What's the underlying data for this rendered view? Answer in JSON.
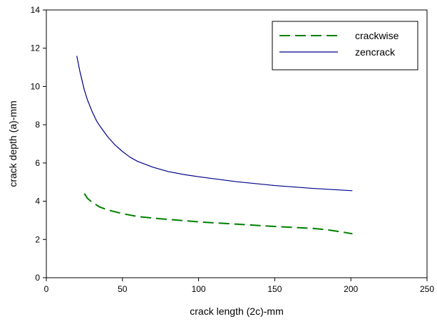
{
  "chart_data": {
    "type": "line",
    "title": "",
    "xlabel": "crack length (2c)-mm",
    "ylabel": "crack depth (a)-mm",
    "xlim": [
      0,
      250
    ],
    "ylim": [
      0,
      14
    ],
    "x_ticks": [
      0,
      50,
      100,
      150,
      200,
      250
    ],
    "y_ticks": [
      0,
      2,
      4,
      6,
      8,
      10,
      12,
      14
    ],
    "x_tick_labels": [
      "0",
      "50",
      "100",
      "150",
      "200",
      "250"
    ],
    "y_tick_labels": [
      "0",
      "2",
      "4",
      "6",
      "8",
      "10",
      "12",
      "14"
    ],
    "grid": false,
    "legend_position": "top-right",
    "series": [
      {
        "name": "crackwise",
        "color": "#008000",
        "style": "dashed",
        "x": [
          25,
          27,
          30,
          35,
          40,
          50,
          60,
          75,
          100,
          125,
          150,
          175,
          185,
          195,
          201
        ],
        "y": [
          4.4,
          4.15,
          3.95,
          3.7,
          3.55,
          3.35,
          3.2,
          3.08,
          2.92,
          2.8,
          2.68,
          2.58,
          2.5,
          2.38,
          2.3
        ]
      },
      {
        "name": "zencrack",
        "color": "#00008B",
        "style": "solid",
        "x": [
          20,
          22,
          25,
          27,
          30,
          33,
          35,
          40,
          45,
          50,
          55,
          60,
          70,
          80,
          90,
          100,
          125,
          150,
          175,
          201
        ],
        "y": [
          11.6,
          10.8,
          9.8,
          9.3,
          8.7,
          8.2,
          7.95,
          7.4,
          6.95,
          6.6,
          6.3,
          6.08,
          5.78,
          5.55,
          5.4,
          5.28,
          5.02,
          4.82,
          4.67,
          4.55
        ]
      }
    ]
  }
}
